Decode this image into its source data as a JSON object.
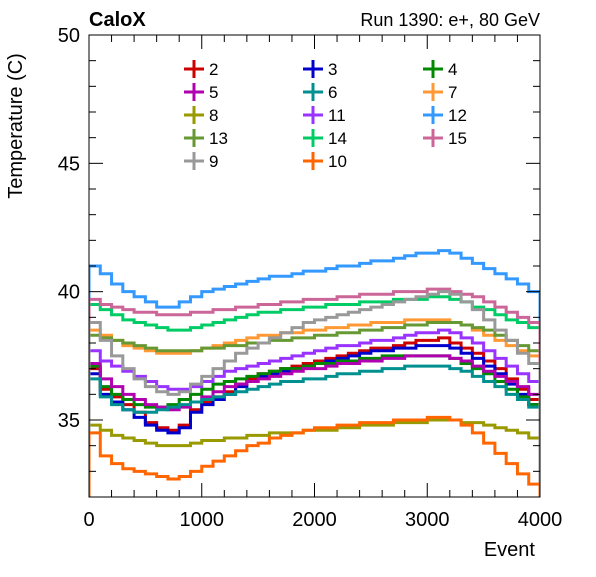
{
  "header": {
    "left": "CaloX",
    "right": "Run 1390: e+, 80 GeV"
  },
  "chart_data": {
    "type": "line",
    "style": "step-histogram",
    "xlabel": "Event",
    "ylabel": "Temperature (C)",
    "xlim": [
      0,
      4000
    ],
    "ylim": [
      32,
      50
    ],
    "x_ticks": [
      0,
      1000,
      2000,
      3000,
      4000
    ],
    "y_ticks": [
      35,
      40,
      45,
      50
    ],
    "grid": false,
    "legend_position": "top",
    "legend_columns": 3,
    "x_bin_edges": [
      0,
      100,
      200,
      300,
      400,
      500,
      600,
      700,
      800,
      900,
      1000,
      1100,
      1200,
      1300,
      1400,
      1500,
      1600,
      1700,
      1800,
      1900,
      2000,
      2100,
      2200,
      2300,
      2400,
      2500,
      2600,
      2700,
      2800,
      2900,
      3000,
      3100,
      3200,
      3300,
      3400,
      3500,
      3600,
      3700,
      3800,
      3900,
      4000
    ],
    "series": [
      {
        "name": "2",
        "color": "#cc0000",
        "values": [
          37.0,
          36.2,
          35.9,
          35.6,
          35.3,
          34.9,
          34.7,
          34.6,
          34.8,
          35.4,
          35.7,
          35.9,
          36.1,
          36.4,
          36.6,
          36.8,
          36.9,
          37.0,
          37.1,
          37.2,
          37.3,
          37.4,
          37.5,
          37.6,
          37.7,
          37.8,
          37.8,
          37.9,
          38.0,
          38.1,
          38.1,
          38.2,
          38.0,
          37.8,
          37.6,
          37.3,
          37.0,
          36.6,
          36.2,
          35.8
        ]
      },
      {
        "name": "3",
        "color": "#0000cc",
        "values": [
          36.8,
          36.0,
          35.7,
          35.4,
          35.1,
          34.8,
          34.6,
          34.5,
          34.7,
          35.3,
          35.6,
          35.8,
          36.0,
          36.3,
          36.5,
          36.7,
          36.8,
          36.9,
          37.0,
          37.1,
          37.2,
          37.3,
          37.4,
          37.5,
          37.6,
          37.7,
          37.7,
          37.8,
          37.8,
          37.9,
          37.9,
          37.9,
          37.8,
          37.6,
          37.4,
          37.1,
          36.8,
          36.4,
          36.0,
          35.6
        ]
      },
      {
        "name": "4",
        "color": "#008800",
        "values": [
          37.1,
          36.3,
          36.0,
          35.8,
          35.6,
          35.5,
          35.5,
          35.6,
          35.8,
          36.0,
          36.2,
          36.4,
          36.5,
          36.6,
          36.7,
          36.8,
          36.9,
          37.0,
          37.0,
          37.1,
          37.2,
          37.2,
          37.3,
          37.3,
          37.4,
          37.4,
          37.5,
          37.5,
          37.5,
          37.5,
          37.5,
          37.5,
          37.4,
          37.2,
          37.0,
          36.8,
          36.5,
          36.2,
          35.9,
          35.6
        ]
      },
      {
        "name": "5",
        "color": "#b000b0",
        "values": [
          37.2,
          36.6,
          36.3,
          36.0,
          35.8,
          35.6,
          35.5,
          35.4,
          35.5,
          35.7,
          35.9,
          36.1,
          36.3,
          36.4,
          36.5,
          36.6,
          36.7,
          36.8,
          36.9,
          37.0,
          37.0,
          37.1,
          37.2,
          37.2,
          37.3,
          37.3,
          37.4,
          37.4,
          37.5,
          37.5,
          37.5,
          37.5,
          37.4,
          37.3,
          37.1,
          36.9,
          36.7,
          36.5,
          36.3,
          36.0
        ]
      },
      {
        "name": "6",
        "color": "#009090",
        "values": [
          36.6,
          35.9,
          35.6,
          35.4,
          35.3,
          35.3,
          35.4,
          35.5,
          35.6,
          35.7,
          35.8,
          35.9,
          36.0,
          36.1,
          36.2,
          36.3,
          36.4,
          36.5,
          36.5,
          36.6,
          36.6,
          36.7,
          36.8,
          36.8,
          36.9,
          36.9,
          37.0,
          37.0,
          37.1,
          37.1,
          37.1,
          37.1,
          37.0,
          36.9,
          36.7,
          36.5,
          36.3,
          36.0,
          35.8,
          35.5
        ]
      },
      {
        "name": "7",
        "color": "#ff9933",
        "values": [
          38.5,
          38.3,
          38.1,
          37.9,
          37.8,
          37.7,
          37.6,
          37.6,
          37.6,
          37.7,
          37.8,
          37.9,
          38.0,
          38.1,
          38.2,
          38.3,
          38.3,
          38.4,
          38.4,
          38.5,
          38.5,
          38.6,
          38.6,
          38.7,
          38.7,
          38.8,
          38.8,
          38.8,
          38.9,
          38.9,
          38.9,
          38.9,
          38.8,
          38.7,
          38.5,
          38.3,
          38.1,
          37.9,
          37.7,
          37.5
        ]
      },
      {
        "name": "8",
        "color": "#999900",
        "values": [
          34.8,
          34.6,
          34.4,
          34.3,
          34.2,
          34.1,
          34.0,
          34.0,
          34.0,
          34.1,
          34.2,
          34.2,
          34.3,
          34.3,
          34.4,
          34.4,
          34.5,
          34.5,
          34.5,
          34.6,
          34.6,
          34.6,
          34.7,
          34.7,
          34.8,
          34.8,
          34.8,
          34.9,
          34.9,
          34.9,
          35.0,
          35.0,
          35.0,
          34.9,
          34.9,
          34.8,
          34.7,
          34.6,
          34.5,
          34.3
        ]
      },
      {
        "name": "11",
        "color": "#9933ff",
        "values": [
          37.7,
          37.3,
          37.1,
          36.9,
          36.7,
          36.5,
          36.3,
          36.2,
          36.2,
          36.3,
          36.5,
          36.7,
          36.9,
          37.0,
          37.1,
          37.2,
          37.3,
          37.4,
          37.5,
          37.6,
          37.7,
          37.8,
          37.9,
          37.9,
          38.0,
          38.1,
          38.1,
          38.2,
          38.3,
          38.4,
          38.4,
          38.5,
          38.4,
          38.2,
          38.0,
          37.7,
          37.4,
          37.1,
          36.8,
          36.5
        ]
      },
      {
        "name": "12",
        "color": "#3399ff",
        "values": [
          41.0,
          40.7,
          40.3,
          40.0,
          39.8,
          39.6,
          39.4,
          39.4,
          39.6,
          39.8,
          40.0,
          40.1,
          40.2,
          40.3,
          40.4,
          40.5,
          40.6,
          40.6,
          40.7,
          40.8,
          40.8,
          40.9,
          41.0,
          41.0,
          41.1,
          41.2,
          41.2,
          41.3,
          41.4,
          41.5,
          41.5,
          41.6,
          41.5,
          41.3,
          41.1,
          40.9,
          40.7,
          40.5,
          40.3,
          40.0
        ]
      },
      {
        "name": "13",
        "color": "#669933",
        "values": [
          38.3,
          38.2,
          38.1,
          38.0,
          37.9,
          37.8,
          37.7,
          37.7,
          37.7,
          37.7,
          37.8,
          37.8,
          37.9,
          37.9,
          38.0,
          38.0,
          38.1,
          38.1,
          38.2,
          38.2,
          38.3,
          38.3,
          38.4,
          38.4,
          38.5,
          38.5,
          38.6,
          38.6,
          38.7,
          38.7,
          38.8,
          38.8,
          38.8,
          38.7,
          38.6,
          38.5,
          38.3,
          38.1,
          37.9,
          37.7
        ]
      },
      {
        "name": "14",
        "color": "#00cc66",
        "values": [
          39.5,
          39.3,
          39.1,
          38.9,
          38.8,
          38.7,
          38.6,
          38.5,
          38.5,
          38.6,
          38.7,
          38.8,
          38.9,
          39.0,
          39.1,
          39.2,
          39.2,
          39.3,
          39.3,
          39.4,
          39.4,
          39.5,
          39.5,
          39.5,
          39.6,
          39.6,
          39.6,
          39.7,
          39.7,
          39.7,
          39.8,
          39.8,
          39.7,
          39.6,
          39.4,
          39.3,
          39.1,
          38.9,
          38.8,
          38.6
        ]
      },
      {
        "name": "15",
        "color": "#cc6699",
        "values": [
          39.7,
          39.5,
          39.4,
          39.3,
          39.2,
          39.2,
          39.1,
          39.1,
          39.1,
          39.2,
          39.2,
          39.3,
          39.3,
          39.4,
          39.4,
          39.5,
          39.5,
          39.6,
          39.6,
          39.7,
          39.7,
          39.7,
          39.8,
          39.8,
          39.9,
          39.9,
          39.9,
          40.0,
          40.0,
          40.0,
          40.1,
          40.1,
          40.0,
          39.9,
          39.8,
          39.6,
          39.4,
          39.2,
          39.0,
          38.8
        ]
      },
      {
        "name": "9",
        "color": "#999999",
        "values": [
          38.8,
          38.1,
          37.5,
          37.0,
          36.6,
          36.3,
          36.1,
          36.0,
          36.1,
          36.4,
          36.7,
          37.0,
          37.3,
          37.6,
          37.8,
          38.0,
          38.2,
          38.4,
          38.6,
          38.8,
          38.9,
          39.0,
          39.1,
          39.2,
          39.3,
          39.4,
          39.5,
          39.6,
          39.7,
          39.8,
          39.9,
          40.0,
          39.9,
          39.6,
          39.3,
          38.9,
          38.5,
          38.1,
          37.6,
          37.2
        ]
      },
      {
        "name": "10",
        "color": "#ff6600",
        "values": [
          34.5,
          33.6,
          33.3,
          33.1,
          33.0,
          32.9,
          32.8,
          32.7,
          32.8,
          33.0,
          33.2,
          33.4,
          33.6,
          33.8,
          34.0,
          34.1,
          34.3,
          34.4,
          34.5,
          34.6,
          34.7,
          34.7,
          34.8,
          34.8,
          34.9,
          34.9,
          34.9,
          35.0,
          35.0,
          35.0,
          35.1,
          35.1,
          35.0,
          34.8,
          34.5,
          34.1,
          33.7,
          33.3,
          32.9,
          32.5
        ]
      }
    ]
  }
}
